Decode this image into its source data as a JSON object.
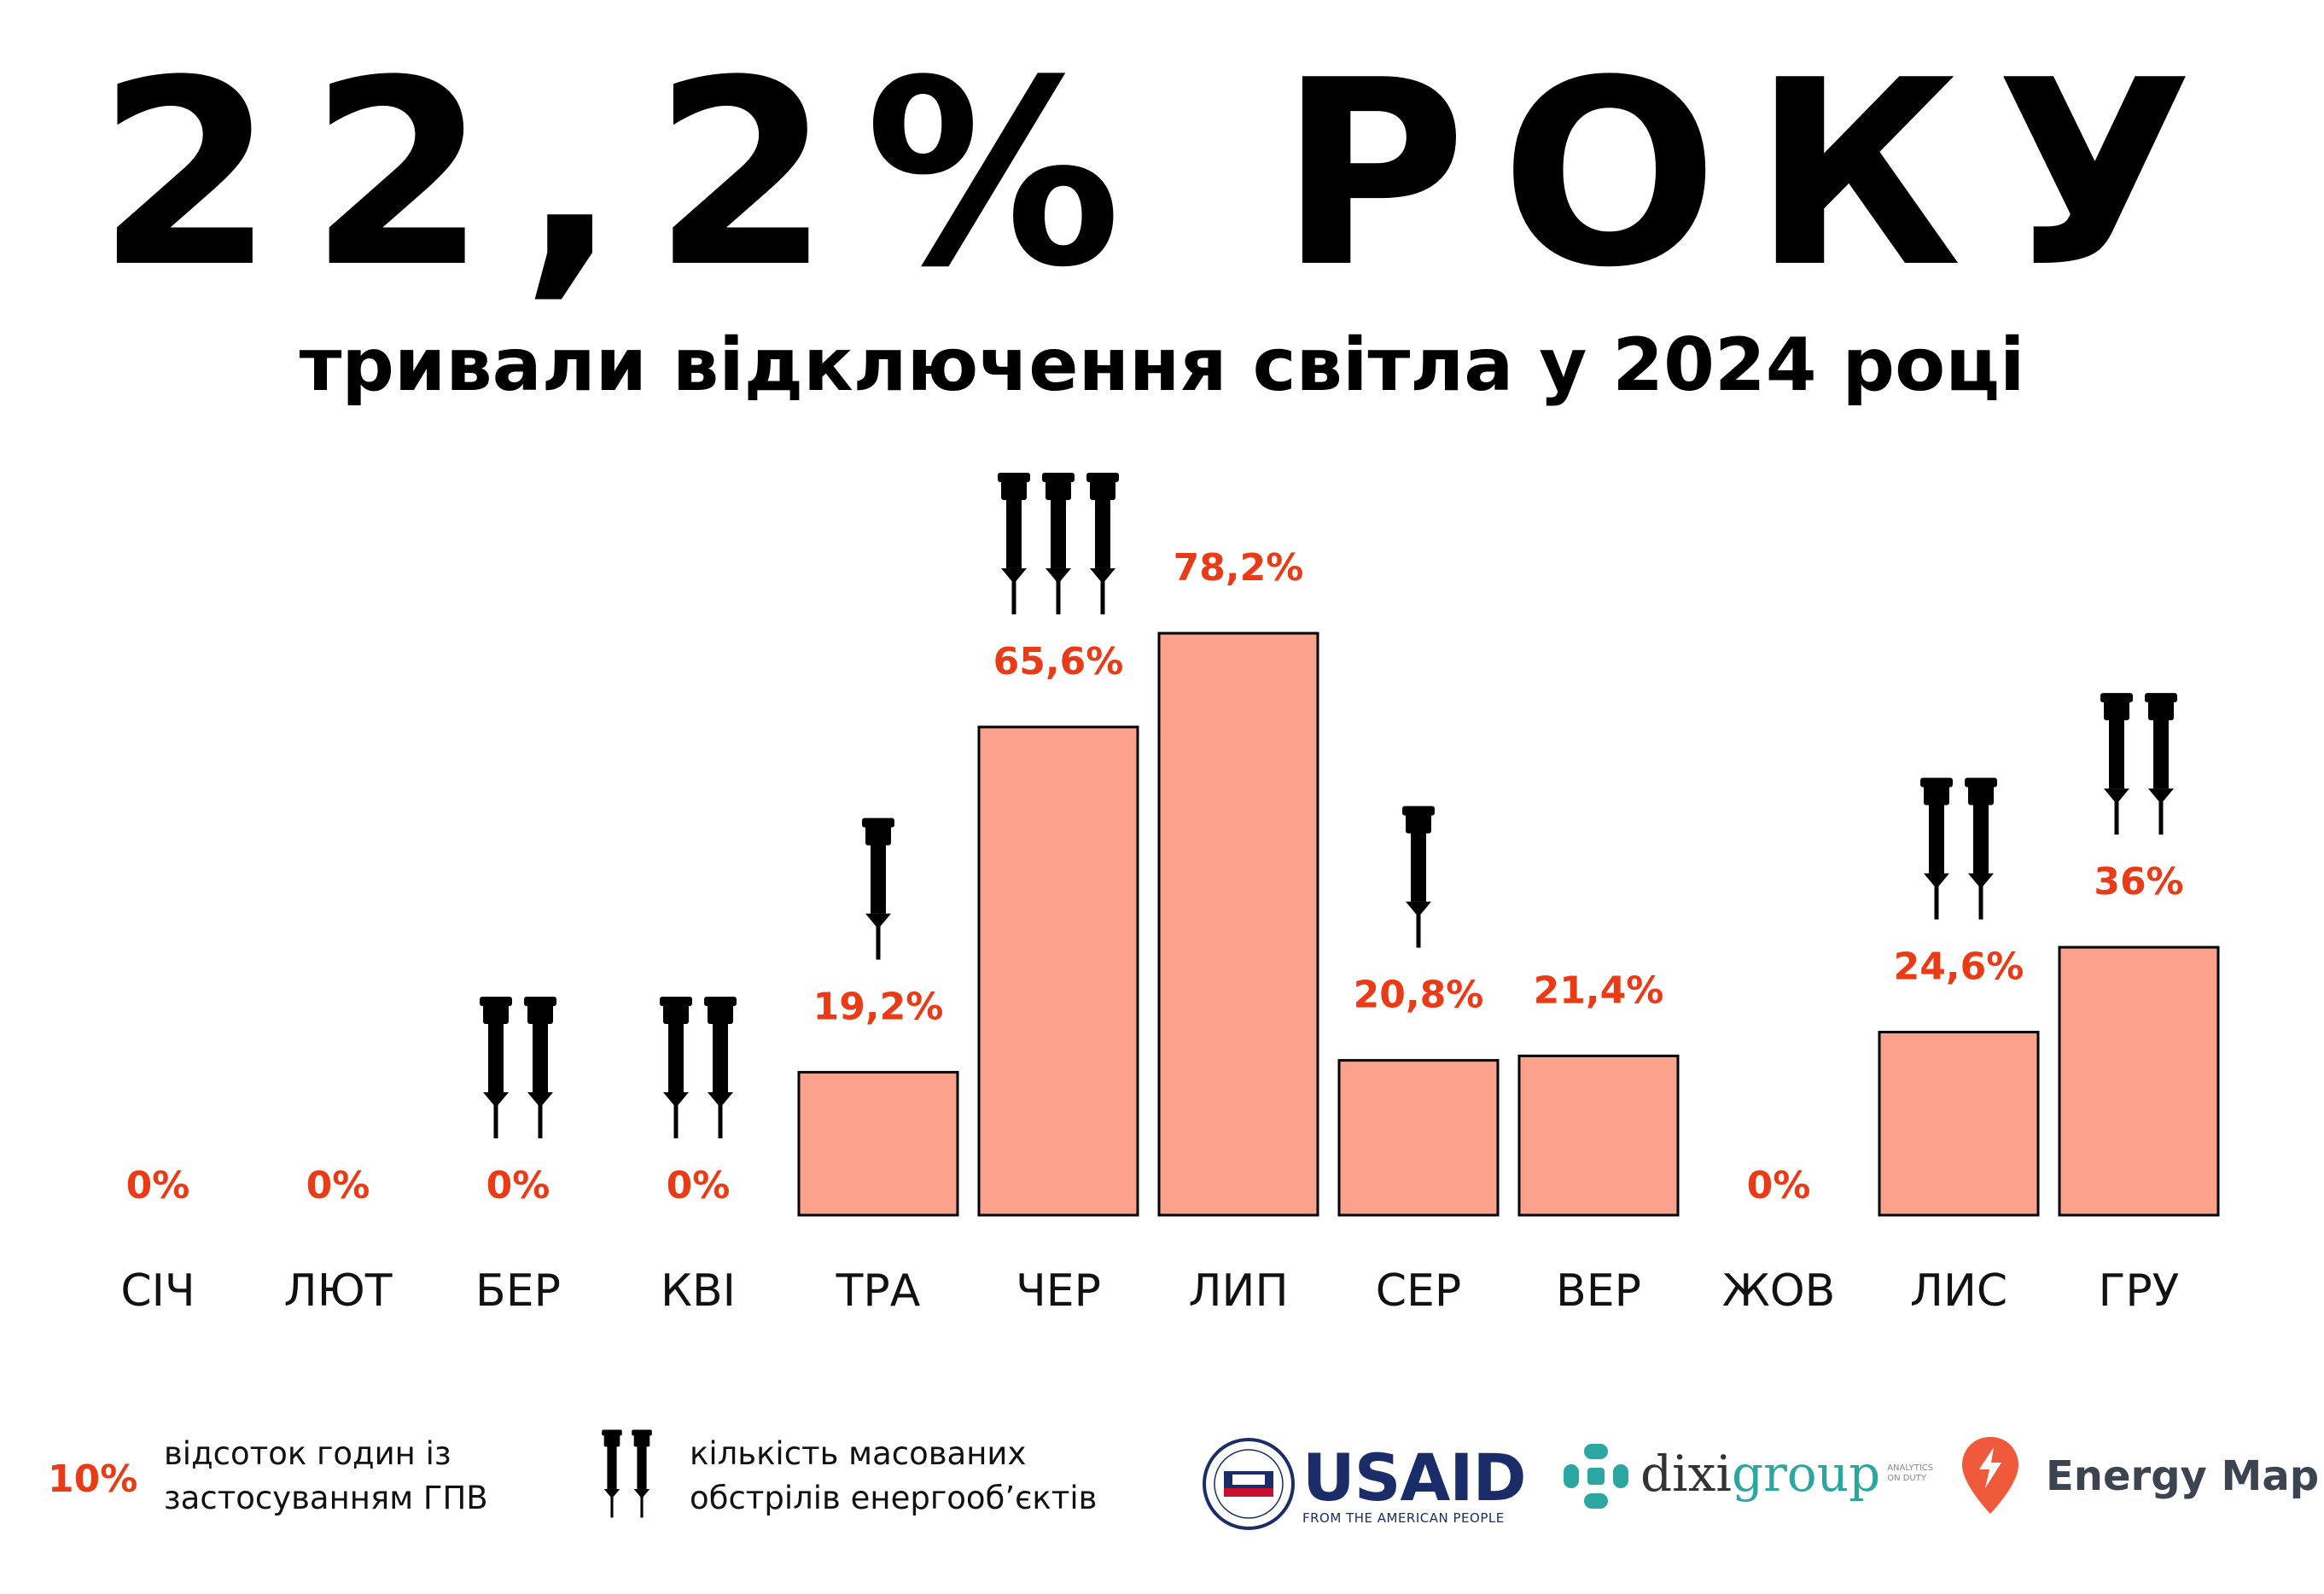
{
  "headline": "22,2% РОКУ",
  "subtitle": "тривали відключення світла у 2024 році",
  "chart_data": {
    "type": "bar",
    "title": "22,2% РОКУ",
    "subtitle": "тривали відключення світла у 2024 році",
    "categories": [
      "СІЧ",
      "ЛЮТ",
      "БЕР",
      "КВІ",
      "ТРА",
      "ЧЕР",
      "ЛИП",
      "СЕР",
      "ВЕР",
      "ЖОВ",
      "ЛИС",
      "ГРУ"
    ],
    "values": [
      0,
      0,
      0,
      0,
      19.2,
      65.6,
      78.2,
      20.8,
      21.4,
      0,
      24.6,
      36
    ],
    "value_labels": [
      "0%",
      "0%",
      "0%",
      "0%",
      "19,2%",
      "65,6%",
      "78,2%",
      "20,8%",
      "21,4%",
      "0%",
      "24,6%",
      "36%"
    ],
    "attacks": [
      0,
      0,
      2,
      2,
      1,
      3,
      0,
      1,
      0,
      0,
      2,
      2
    ],
    "ylim": [
      0,
      100
    ],
    "bar_color": "#fca28c",
    "label_color": "#ea3a16",
    "xlabel": "",
    "ylabel": ""
  },
  "legend": {
    "value_sample": "10%",
    "value_desc": [
      "відсоток годин із",
      "застосуванням ГПВ"
    ],
    "rocket_desc": [
      "кількість масованих",
      "обстрілів енергооб’єктів"
    ]
  },
  "logos": {
    "usaid": {
      "name": "USAID",
      "tagline": "FROM THE AMERICAN PEOPLE"
    },
    "dixigroup": {
      "name_part1": "dixi",
      "name_part2": "group",
      "tagline_line1": "ANALYTICS",
      "tagline_line2": "ON DUTY"
    },
    "energy_map": {
      "name": "Energy Map"
    }
  },
  "colors": {
    "accent": "#ea3a16",
    "bar": "#fca28c",
    "usaid_blue": "#1a2d69",
    "usaid_red": "#c8102e",
    "dixi_teal": "#2ba6a0",
    "energymap_orange": "#ef5a3c"
  }
}
